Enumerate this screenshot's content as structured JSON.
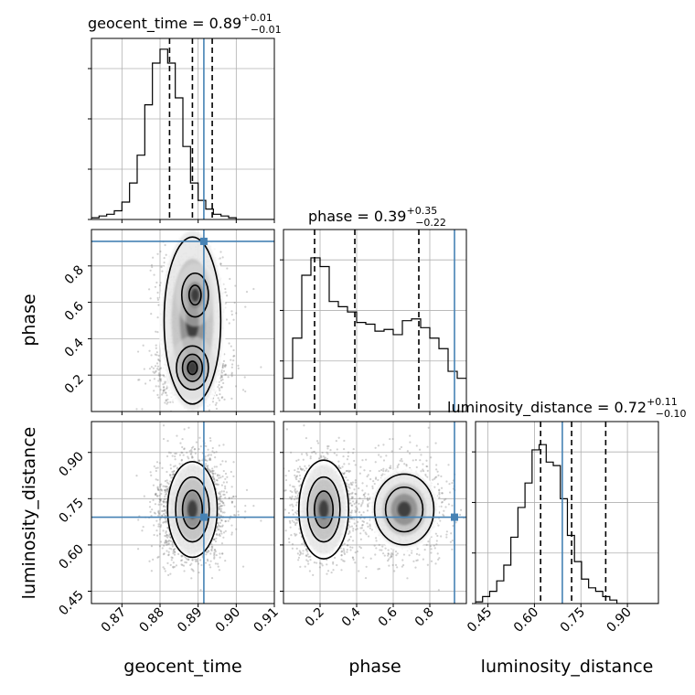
{
  "chart_data": {
    "type": "corner",
    "parameters": [
      "geocent_time",
      "phase",
      "luminosity_distance"
    ],
    "truths": [
      0.8915,
      0.935,
      0.69
    ],
    "truth_color": "#4682b4",
    "diagonal": [
      {
        "param": "geocent_time",
        "title_name": "geocent_time",
        "median": "0.89",
        "plus": "+0.01",
        "minus": "−0.01",
        "quantiles": [
          0.8825,
          0.8885,
          0.8937
        ],
        "range": [
          0.862,
          0.91
        ],
        "hist_max": 1.0,
        "hist_edges_start": 0.862,
        "hist_bin": 0.002,
        "hist": [
          0.01,
          0.02,
          0.03,
          0.05,
          0.1,
          0.21,
          0.37,
          0.66,
          0.9,
          0.98,
          0.9,
          0.7,
          0.42,
          0.21,
          0.11,
          0.06,
          0.03,
          0.02,
          0.01,
          0.0,
          0.0,
          0.0,
          0.0,
          0.0
        ],
        "hist_scale": 1.0
      },
      {
        "param": "phase",
        "title_name": "phase",
        "median": "0.39",
        "plus": "+0.35",
        "minus": "−0.22",
        "quantiles": [
          0.17,
          0.39,
          0.74
        ],
        "range": [
          0.0,
          1.0
        ],
        "hist_edges_start": 0.0,
        "hist_bin": 0.05,
        "hist": [
          0.19,
          0.42,
          0.78,
          0.88,
          0.83,
          0.63,
          0.6,
          0.57,
          0.51,
          0.5,
          0.46,
          0.47,
          0.44,
          0.52,
          0.53,
          0.48,
          0.42,
          0.36,
          0.23,
          0.19
        ],
        "hist_scale": 1.0
      },
      {
        "param": "luminosity_distance",
        "title_name": "luminosity_distance",
        "median": "0.72",
        "plus": "+0.11",
        "minus": "−0.10",
        "quantiles": [
          0.62,
          0.72,
          0.83
        ],
        "range": [
          0.41,
          1.0
        ],
        "hist_edges_start": 0.41,
        "hist_bin": 0.0228,
        "hist": [
          0.01,
          0.04,
          0.07,
          0.13,
          0.22,
          0.38,
          0.55,
          0.69,
          0.88,
          0.91,
          0.81,
          0.79,
          0.6,
          0.39,
          0.24,
          0.14,
          0.09,
          0.07,
          0.04,
          0.02,
          0.0,
          0.0,
          0.0,
          0.0,
          0.0,
          0.0
        ],
        "hist_scale": 1.0
      }
    ],
    "ticks": {
      "geocent_time": [
        "0.87",
        "0.88",
        "0.89",
        "0.90",
        "0.91"
      ],
      "geocent_time_values": [
        0.87,
        0.88,
        0.89,
        0.9,
        0.91
      ],
      "phase": [
        "0.2",
        "0.4",
        "0.6",
        "0.8"
      ],
      "phase_values": [
        0.2,
        0.4,
        0.6,
        0.8
      ],
      "luminosity_distance": [
        "0.45",
        "0.60",
        "0.75",
        "0.90"
      ],
      "luminosity_distance_values": [
        0.45,
        0.6,
        0.75,
        0.9
      ]
    },
    "axis_labels": {
      "x": [
        "geocent_time",
        "phase",
        "luminosity_distance"
      ],
      "y": [
        "phase",
        "luminosity_distance"
      ]
    },
    "grid": true
  }
}
